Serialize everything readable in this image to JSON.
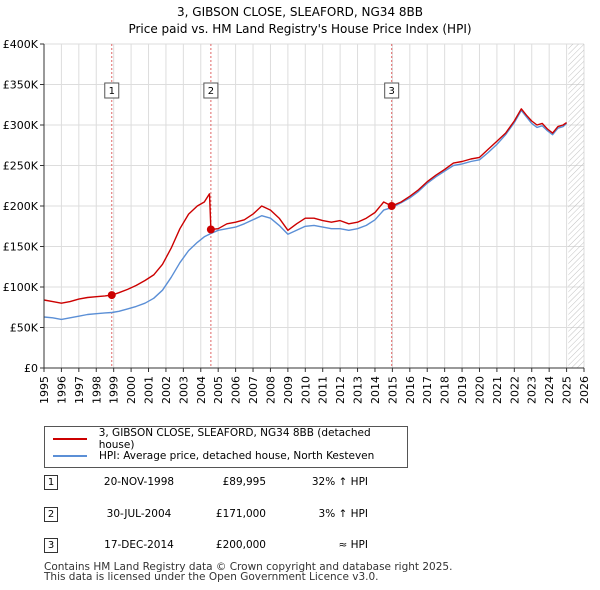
{
  "title_line1": "3, GIBSON CLOSE, SLEAFORD, NG34 8BB",
  "title_line2": "Price paid vs. HM Land Registry's House Price Index (HPI)",
  "colors": {
    "property": "#cc0000",
    "hpi": "#5b8fd6",
    "grid": "#dddddd",
    "marker_border": "#555555",
    "future_hatch": "#bbbbbb"
  },
  "legend": {
    "property_label": "3, GIBSON CLOSE, SLEAFORD, NG34 8BB (detached house)",
    "hpi_label": "HPI: Average price, detached house, North Kesteven"
  },
  "sales": [
    {
      "num": "1",
      "date": "20-NOV-1998",
      "price": "£89,995",
      "hpi": "32% ↑ HPI"
    },
    {
      "num": "2",
      "date": "30-JUL-2004",
      "price": "£171,000",
      "hpi": "3% ↑ HPI"
    },
    {
      "num": "3",
      "date": "17-DEC-2014",
      "price": "£200,000",
      "hpi": "≈ HPI"
    }
  ],
  "footer": {
    "line1": "Contains HM Land Registry data © Crown copyright and database right 2025.",
    "line2": "This data is licensed under the Open Government Licence v3.0."
  },
  "chart_data": {
    "type": "line",
    "title": "3, GIBSON CLOSE, SLEAFORD, NG34 8BB — Price paid vs. HM Land Registry's House Price Index (HPI)",
    "xlim": [
      1995,
      2026
    ],
    "ylim": [
      0,
      400000
    ],
    "x_ticks": [
      "1995",
      "1996",
      "1997",
      "1998",
      "1999",
      "2000",
      "2001",
      "2002",
      "2003",
      "2004",
      "2005",
      "2006",
      "2007",
      "2008",
      "2009",
      "2010",
      "2011",
      "2012",
      "2013",
      "2014",
      "2015",
      "2016",
      "2017",
      "2018",
      "2019",
      "2020",
      "2021",
      "2022",
      "2023",
      "2024",
      "2025",
      "2026"
    ],
    "y_ticks": [
      {
        "value": 0,
        "label": "£0"
      },
      {
        "value": 50000,
        "label": "£50K"
      },
      {
        "value": 100000,
        "label": "£100K"
      },
      {
        "value": 150000,
        "label": "£150K"
      },
      {
        "value": 200000,
        "label": "£200K"
      },
      {
        "value": 250000,
        "label": "£250K"
      },
      {
        "value": 300000,
        "label": "£300K"
      },
      {
        "value": 350000,
        "label": "£350K"
      },
      {
        "value": 400000,
        "label": "£400K"
      }
    ],
    "future_from": 2025.1,
    "series": [
      {
        "name": "3, GIBSON CLOSE, SLEAFORD, NG34 8BB (detached house)",
        "color": "#cc0000",
        "x": [
          1995,
          1995.5,
          1996,
          1996.5,
          1997,
          1997.5,
          1998,
          1998.5,
          1998.9,
          1999.3,
          1999.8,
          2000.3,
          2000.8,
          2001.3,
          2001.8,
          2002.3,
          2002.8,
          2003.3,
          2003.8,
          2004.2,
          2004.5,
          2004.58,
          2005,
          2005.5,
          2006,
          2006.5,
          2007,
          2007.5,
          2008,
          2008.5,
          2009,
          2009.5,
          2010,
          2010.5,
          2011,
          2011.5,
          2012,
          2012.5,
          2013,
          2013.5,
          2014,
          2014.5,
          2014.96,
          2015.5,
          2016,
          2016.5,
          2017,
          2017.5,
          2018,
          2018.5,
          2019,
          2019.5,
          2020,
          2020.5,
          2021,
          2021.5,
          2022,
          2022.4,
          2022.7,
          2023,
          2023.3,
          2023.6,
          2023.9,
          2024.2,
          2024.5,
          2024.8,
          2025.0
        ],
        "y": [
          84000,
          82000,
          80000,
          82000,
          85000,
          87000,
          88000,
          89000,
          89995,
          93000,
          97000,
          102000,
          108000,
          115000,
          128000,
          148000,
          172000,
          190000,
          200000,
          205000,
          215000,
          171000,
          172000,
          178000,
          180000,
          183000,
          190000,
          200000,
          195000,
          185000,
          170000,
          178000,
          185000,
          185000,
          182000,
          180000,
          182000,
          178000,
          180000,
          185000,
          192000,
          205000,
          200000,
          205000,
          212000,
          220000,
          230000,
          238000,
          245000,
          253000,
          255000,
          258000,
          260000,
          270000,
          280000,
          290000,
          305000,
          320000,
          312000,
          305000,
          300000,
          302000,
          295000,
          290000,
          298000,
          300000,
          303000
        ]
      },
      {
        "name": "HPI: Average price, detached house, North Kesteven",
        "color": "#5b8fd6",
        "x": [
          1995,
          1995.5,
          1996,
          1996.5,
          1997,
          1997.5,
          1998,
          1998.5,
          1998.9,
          1999.3,
          1999.8,
          2000.3,
          2000.8,
          2001.3,
          2001.8,
          2002.3,
          2002.8,
          2003.3,
          2003.8,
          2004.2,
          2004.58,
          2005,
          2005.5,
          2006,
          2006.5,
          2007,
          2007.5,
          2008,
          2008.5,
          2009,
          2009.5,
          2010,
          2010.5,
          2011,
          2011.5,
          2012,
          2012.5,
          2013,
          2013.5,
          2014,
          2014.5,
          2014.96,
          2015.5,
          2016,
          2016.5,
          2017,
          2017.5,
          2018,
          2018.5,
          2019,
          2019.5,
          2020,
          2020.5,
          2021,
          2021.5,
          2022,
          2022.4,
          2022.7,
          2023,
          2023.3,
          2023.6,
          2023.9,
          2024.2,
          2024.5,
          2024.8,
          2025.0
        ],
        "y": [
          63000,
          62000,
          60000,
          62000,
          64000,
          66000,
          67000,
          68000,
          68500,
          70000,
          73000,
          76000,
          80000,
          86000,
          96000,
          112000,
          130000,
          145000,
          155000,
          162000,
          166000,
          170000,
          172000,
          174000,
          178000,
          183000,
          188000,
          185000,
          176000,
          165000,
          170000,
          175000,
          176000,
          174000,
          172000,
          172000,
          170000,
          172000,
          176000,
          183000,
          195000,
          198000,
          204000,
          210000,
          218000,
          228000,
          236000,
          243000,
          250000,
          252000,
          255000,
          257000,
          266000,
          276000,
          288000,
          303000,
          318000,
          310000,
          302000,
          297000,
          299000,
          293000,
          288000,
          296000,
          298000,
          302000
        ]
      }
    ],
    "sales_markers": [
      {
        "label": "1",
        "x": 1998.89,
        "y": 89995
      },
      {
        "label": "2",
        "x": 2004.58,
        "y": 171000
      },
      {
        "label": "3",
        "x": 2014.96,
        "y": 200000
      }
    ]
  }
}
